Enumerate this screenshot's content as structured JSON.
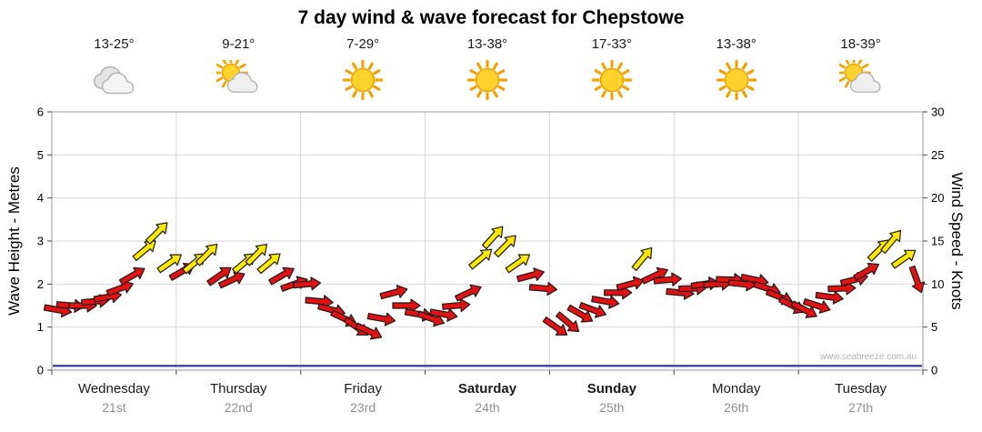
{
  "title": "7 day wind & wave forecast for Chepstowe",
  "watermark": "www.seabreeze.com.au",
  "days": [
    {
      "name": "Wednesday",
      "date": "21st",
      "temp": "13-25°",
      "icon": "cloudy",
      "bold": false
    },
    {
      "name": "Thursday",
      "date": "22nd",
      "temp": "9-21°",
      "icon": "partly-cloudy",
      "bold": false
    },
    {
      "name": "Friday",
      "date": "23rd",
      "temp": "7-29°",
      "icon": "sunny",
      "bold": false
    },
    {
      "name": "Saturday",
      "date": "24th",
      "temp": "13-38°",
      "icon": "sunny",
      "bold": true
    },
    {
      "name": "Sunday",
      "date": "25th",
      "temp": "17-33°",
      "icon": "sunny",
      "bold": true
    },
    {
      "name": "Monday",
      "date": "26th",
      "temp": "13-38°",
      "icon": "sunny",
      "bold": false
    },
    {
      "name": "Tuesday",
      "date": "27th",
      "temp": "18-39°",
      "icon": "partly-cloudy",
      "bold": false
    }
  ],
  "colors": {
    "arrow_red": "#e31212",
    "arrow_yellow": "#ffe800",
    "arrow_outline": "#1a1a1a",
    "wave_line": "#3a3aad",
    "grid": "#d4d4d4",
    "plot_border": "#9a9a9a",
    "tick": "#444444",
    "date_text": "#8f8f8f",
    "watermark_text": "#b3b3b3"
  },
  "chart_data": {
    "type": "scatter",
    "title": "7 day wind & wave forecast for Chepstowe",
    "x_categories": [
      "Wednesday 21st",
      "Thursday 22nd",
      "Friday 23rd",
      "Saturday 24th",
      "Sunday 25th",
      "Monday 26th",
      "Tuesday 27th"
    ],
    "points_per_day": 10,
    "left_axis": {
      "label": "Wave Height - Metres",
      "range": [
        0,
        6
      ],
      "ticks": [
        0,
        1,
        2,
        3,
        4,
        5,
        6
      ]
    },
    "right_axis": {
      "label": "Wind Speed - Knots",
      "range": [
        0,
        30
      ],
      "ticks": [
        0,
        5,
        10,
        15,
        20,
        25,
        30
      ]
    },
    "grid": true,
    "series": [
      {
        "name": "wind_speed_knots",
        "values": [
          7,
          7.5,
          7.5,
          8,
          8.5,
          9.5,
          11,
          14,
          16,
          12.5,
          11.5,
          12.5,
          13.5,
          11,
          10.5,
          12.5,
          13.5,
          12.5,
          11,
          10,
          10,
          8,
          7,
          6,
          5,
          4.5,
          6,
          9,
          7.5,
          6.5,
          6,
          6.5,
          7.5,
          9,
          13,
          15.5,
          14.5,
          12.5,
          11,
          9.5,
          5,
          5.5,
          6.5,
          7,
          8,
          9,
          10,
          13,
          11,
          10.5,
          9,
          9.5,
          10,
          10,
          10.5,
          10,
          10.5,
          9.5,
          8.5,
          7.5,
          7,
          7.5,
          8.5,
          9.5,
          10.5,
          11.5,
          14,
          15,
          13,
          10.5
        ]
      },
      {
        "name": "wind_direction_deg_0up_cw",
        "values": [
          100,
          95,
          90,
          85,
          80,
          70,
          60,
          50,
          45,
          55,
          60,
          50,
          45,
          55,
          65,
          50,
          45,
          50,
          60,
          70,
          85,
          95,
          105,
          115,
          125,
          115,
          100,
          75,
          90,
          100,
          110,
          100,
          85,
          65,
          50,
          42,
          45,
          55,
          75,
          95,
          125,
          130,
          120,
          110,
          100,
          90,
          75,
          40,
          65,
          85,
          95,
          88,
          82,
          86,
          92,
          96,
          102,
          108,
          112,
          118,
          118,
          108,
          98,
          88,
          76,
          60,
          45,
          40,
          55,
          160
        ]
      },
      {
        "name": "wave_height_m",
        "values": [
          0.1
        ]
      }
    ],
    "arrow_colors": [
      "r",
      "r",
      "r",
      "r",
      "r",
      "r",
      "r",
      "y",
      "y",
      "y",
      "r",
      "y",
      "y",
      "r",
      "r",
      "y",
      "y",
      "y",
      "r",
      "r",
      "r",
      "r",
      "r",
      "r",
      "r",
      "r",
      "r",
      "r",
      "r",
      "r",
      "r",
      "r",
      "r",
      "r",
      "y",
      "y",
      "y",
      "y",
      "r",
      "r",
      "r",
      "r",
      "r",
      "r",
      "r",
      "r",
      "r",
      "y",
      "r",
      "r",
      "r",
      "r",
      "r",
      "r",
      "r",
      "r",
      "r",
      "r",
      "r",
      "r",
      "r",
      "r",
      "r",
      "r",
      "r",
      "r",
      "y",
      "y",
      "y",
      "r"
    ],
    "color_legend": {
      "r": "red arrow (lighter wind)",
      "y": "yellow arrow (stronger wind)"
    }
  }
}
